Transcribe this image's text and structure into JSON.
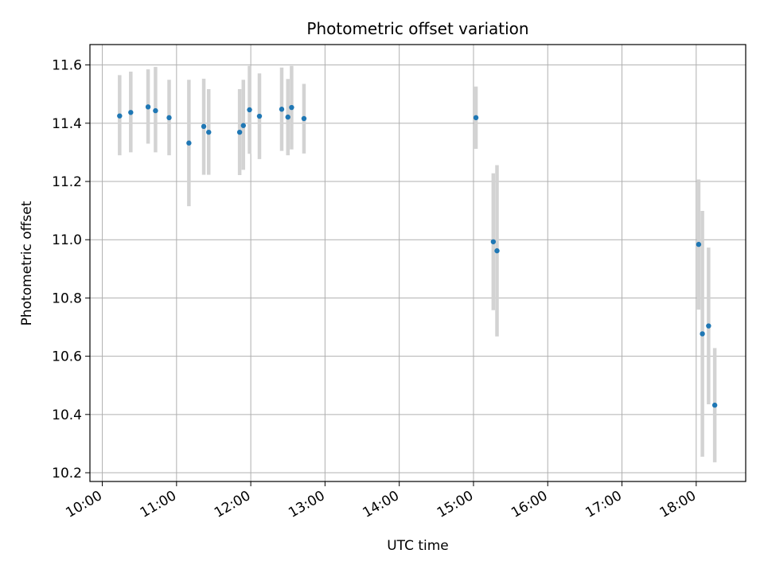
{
  "chart_data": {
    "type": "scatter",
    "title": "Photometric offset variation",
    "xlabel": "UTC time",
    "ylabel": "Photometric offset",
    "x_axis_kind": "time",
    "xlim": [
      "09:50",
      "18:40"
    ],
    "ylim": [
      10.17,
      11.67
    ],
    "x_ticks": [
      "10:00",
      "11:00",
      "12:00",
      "13:00",
      "14:00",
      "15:00",
      "16:00",
      "17:00",
      "18:00"
    ],
    "y_ticks": [
      "10.2",
      "10.4",
      "10.6",
      "10.8",
      "11.0",
      "11.2",
      "11.4",
      "11.6"
    ],
    "grid": true,
    "colors": {
      "point": "#1f77b4",
      "errorbar": "#d3d3d3",
      "grid": "#b0b0b0"
    },
    "points": [
      {
        "x": "10:14",
        "y": 11.425,
        "ylow": 11.29,
        "yhigh": 11.565
      },
      {
        "x": "10:23",
        "y": 11.437,
        "ylow": 11.3,
        "yhigh": 11.577
      },
      {
        "x": "10:37",
        "y": 11.456,
        "ylow": 11.33,
        "yhigh": 11.585
      },
      {
        "x": "10:43",
        "y": 11.443,
        "ylow": 11.3,
        "yhigh": 11.593
      },
      {
        "x": "10:54",
        "y": 11.419,
        "ylow": 11.29,
        "yhigh": 11.549
      },
      {
        "x": "11:10",
        "y": 11.332,
        "ylow": 11.115,
        "yhigh": 11.549
      },
      {
        "x": "11:22",
        "y": 11.389,
        "ylow": 11.223,
        "yhigh": 11.553
      },
      {
        "x": "11:26",
        "y": 11.369,
        "ylow": 11.223,
        "yhigh": 11.517
      },
      {
        "x": "11:51",
        "y": 11.369,
        "ylow": 11.222,
        "yhigh": 11.517
      },
      {
        "x": "11:54",
        "y": 11.392,
        "ylow": 11.24,
        "yhigh": 11.549
      },
      {
        "x": "11:59",
        "y": 11.446,
        "ylow": 11.295,
        "yhigh": 11.597
      },
      {
        "x": "12:07",
        "y": 11.424,
        "ylow": 11.277,
        "yhigh": 11.571
      },
      {
        "x": "12:25",
        "y": 11.448,
        "ylow": 11.305,
        "yhigh": 11.591
      },
      {
        "x": "12:30",
        "y": 11.421,
        "ylow": 11.29,
        "yhigh": 11.552
      },
      {
        "x": "12:33",
        "y": 11.454,
        "ylow": 11.31,
        "yhigh": 11.597
      },
      {
        "x": "12:43",
        "y": 11.416,
        "ylow": 11.296,
        "yhigh": 11.535
      },
      {
        "x": "15:02",
        "y": 11.419,
        "ylow": 11.312,
        "yhigh": 11.526
      },
      {
        "x": "15:16",
        "y": 10.993,
        "ylow": 10.758,
        "yhigh": 11.228
      },
      {
        "x": "15:19",
        "y": 10.962,
        "ylow": 10.668,
        "yhigh": 11.256
      },
      {
        "x": "18:02",
        "y": 10.984,
        "ylow": 10.76,
        "yhigh": 11.207
      },
      {
        "x": "18:05",
        "y": 10.677,
        "ylow": 10.255,
        "yhigh": 11.099
      },
      {
        "x": "18:10",
        "y": 10.704,
        "ylow": 10.435,
        "yhigh": 10.973
      },
      {
        "x": "18:15",
        "y": 10.432,
        "ylow": 10.236,
        "yhigh": 10.628
      }
    ]
  }
}
